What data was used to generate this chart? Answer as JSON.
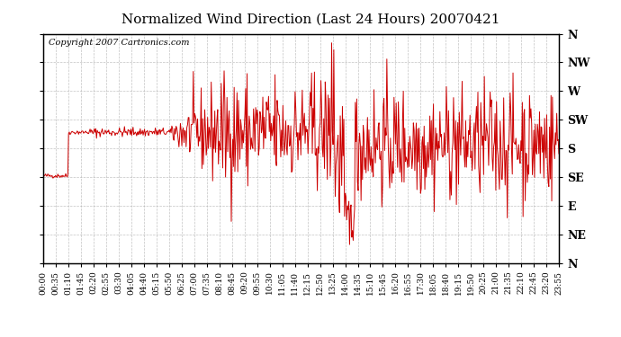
{
  "title": "Normalized Wind Direction (Last 24 Hours) 20070421",
  "copyright_text": "Copyright 2007 Cartronics.com",
  "line_color": "#cc0000",
  "background_color": "#ffffff",
  "grid_color": "#aaaaaa",
  "ytick_labels": [
    "N",
    "NW",
    "W",
    "SW",
    "S",
    "SE",
    "E",
    "NE",
    "N"
  ],
  "ytick_values": [
    1.0,
    0.875,
    0.75,
    0.625,
    0.5,
    0.375,
    0.25,
    0.125,
    0.0
  ],
  "xtick_labels": [
    "00:00",
    "00:35",
    "01:10",
    "01:45",
    "02:20",
    "02:55",
    "03:30",
    "04:05",
    "04:40",
    "05:15",
    "05:50",
    "06:25",
    "07:00",
    "07:35",
    "08:10",
    "08:45",
    "09:20",
    "09:55",
    "10:30",
    "11:05",
    "11:40",
    "12:15",
    "12:50",
    "13:25",
    "14:00",
    "14:35",
    "15:10",
    "15:45",
    "16:20",
    "16:55",
    "17:30",
    "18:05",
    "18:40",
    "19:15",
    "19:50",
    "20:25",
    "21:00",
    "21:35",
    "22:10",
    "22:45",
    "23:20",
    "23:55"
  ],
  "ylim": [
    0.0,
    1.0
  ],
  "seed": 42
}
